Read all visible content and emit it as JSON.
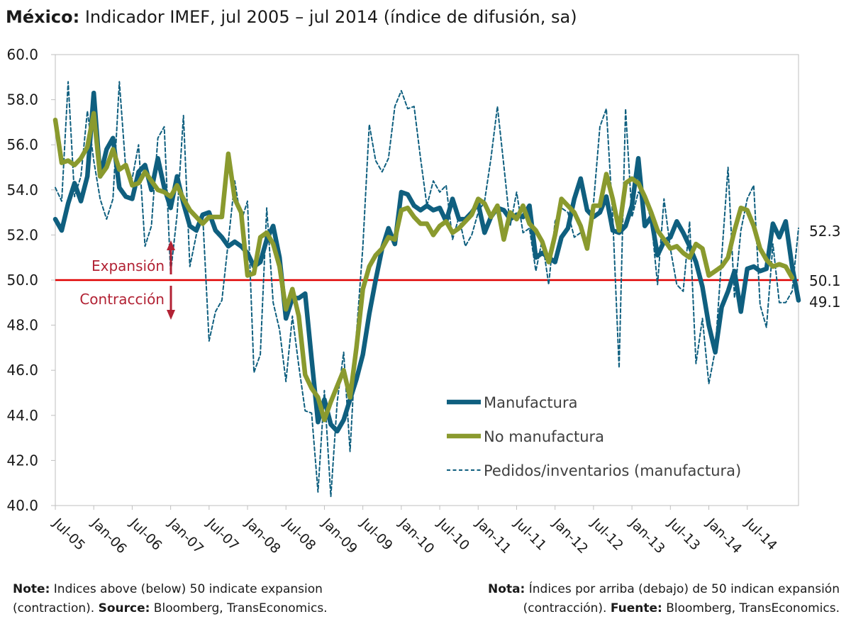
{
  "header": {
    "title_bold": "México:",
    "title_rest": " Indicador IMEF, jul 2005 – jul 2014 (índice de difusión, sa)"
  },
  "notes": {
    "left_label": "Note:",
    "left_text1": " Indices above (below) 50 indicate expansion",
    "left_text2": "(contraction). ",
    "left_source_label": "Source:",
    "left_source": " Bloomberg, TransEconomics.",
    "right_label": "Nota:",
    "right_text1": " Índices por arriba (debajo) de 50 indican expansión",
    "right_text2": "(contracción). ",
    "right_source_label": "Fuente:",
    "right_source": " Bloomberg, TransEconomics."
  },
  "chart_data": {
    "type": "line",
    "title": "México: Indicador IMEF, jul 2005 – jul 2014 (índice de difusión, sa)",
    "ylim": [
      40.0,
      60.0
    ],
    "y_ticks": [
      "40.0",
      "42.0",
      "44.0",
      "46.0",
      "48.0",
      "50.0",
      "52.0",
      "54.0",
      "56.0",
      "58.0",
      "60.0"
    ],
    "x_ticks": [
      "Jul-05",
      "Jan-06",
      "Jul-06",
      "Jan-07",
      "Jul-07",
      "Jan-08",
      "Jul-08",
      "Jan-09",
      "Jul-09",
      "Jan-10",
      "Jul-10",
      "Jan-11",
      "Jul-11",
      "Jan-12",
      "Jul-12",
      "Jan-13",
      "Jul-13",
      "Jan-14",
      "Jul-14"
    ],
    "threshold": 50.0,
    "annotations": {
      "expansion": "Expansión",
      "contraction": "Contracción"
    },
    "end_labels": [
      "52.3",
      "50.1",
      "49.1"
    ],
    "legend_position": "bottom-right",
    "colors": {
      "manufactura": "#0f5f7f",
      "no_manufactura": "#8a9a2e",
      "pedidos": "#0f5f7f",
      "threshold": "#e00000",
      "arrow": "#b22234"
    },
    "series": [
      {
        "name": "Manufactura",
        "style": "thick-solid",
        "values": [
          52.7,
          52.2,
          53.4,
          54.3,
          53.5,
          54.6,
          58.3,
          54.6,
          55.8,
          56.3,
          54.1,
          53.7,
          53.6,
          54.8,
          55.1,
          54.0,
          55.4,
          54.1,
          53.2,
          54.6,
          53.4,
          52.4,
          52.2,
          52.9,
          53.0,
          52.2,
          51.9,
          51.5,
          51.7,
          51.5,
          51.2,
          50.6,
          50.8,
          51.8,
          52.4,
          51.0,
          48.3,
          49.2,
          49.2,
          49.4,
          46.5,
          43.7,
          44.7,
          43.6,
          43.3,
          43.8,
          44.7,
          45.6,
          46.7,
          48.5,
          50.0,
          51.4,
          52.3,
          51.6,
          53.9,
          53.8,
          53.3,
          53.1,
          53.3,
          53.1,
          53.2,
          52.6,
          53.6,
          52.7,
          52.7,
          53.0,
          53.4,
          52.1,
          52.8,
          53.2,
          53.1,
          52.7,
          52.9,
          52.8,
          53.3,
          51.0,
          51.2,
          51.0,
          50.8,
          51.9,
          52.3,
          53.6,
          54.5,
          53.1,
          52.8,
          53.0,
          53.7,
          52.2,
          52.1,
          52.4,
          53.3,
          55.4,
          52.4,
          52.8,
          51.1,
          51.7,
          51.9,
          52.6,
          52.1,
          51.5,
          50.8,
          49.7,
          48.0,
          46.8,
          48.8,
          49.5,
          50.4,
          48.6,
          50.5,
          50.6,
          50.4,
          50.5,
          52.5,
          51.9,
          52.6,
          50.6,
          49.1
        ]
      },
      {
        "name": "No manufactura",
        "style": "thick-solid",
        "values": [
          57.1,
          55.2,
          55.3,
          55.1,
          55.4,
          55.9,
          57.4,
          54.6,
          55.0,
          55.8,
          54.9,
          55.1,
          54.2,
          54.3,
          54.8,
          54.4,
          54.0,
          53.9,
          53.7,
          54.2,
          53.6,
          53.1,
          52.8,
          52.5,
          52.8,
          52.8,
          52.8,
          55.6,
          53.6,
          53.0,
          50.2,
          50.3,
          51.9,
          52.1,
          51.6,
          50.6,
          48.7,
          49.6,
          48.4,
          45.8,
          45.2,
          44.8,
          43.8,
          44.6,
          45.3,
          46.0,
          44.8,
          47.0,
          49.6,
          50.6,
          51.1,
          51.4,
          51.9,
          51.8,
          53.1,
          53.2,
          52.8,
          52.5,
          52.5,
          52.0,
          52.4,
          52.6,
          52.1,
          52.3,
          52.6,
          52.9,
          53.6,
          53.4,
          52.8,
          53.3,
          51.8,
          53.0,
          52.7,
          53.3,
          52.5,
          52.2,
          51.7,
          50.8,
          52.0,
          53.6,
          53.3,
          53.0,
          52.4,
          51.4,
          53.3,
          53.3,
          54.7,
          53.6,
          52.2,
          54.3,
          54.5,
          54.3,
          53.7,
          53.0,
          52.2,
          51.8,
          51.4,
          51.5,
          51.2,
          51.0,
          51.6,
          51.4,
          50.2,
          50.4,
          50.6,
          51.0,
          52.2,
          53.2,
          53.1,
          52.4,
          51.4,
          50.9,
          50.6,
          50.7,
          50.6,
          50.1
        ]
      },
      {
        "name": "Pedidos/inventarios (manufactura)",
        "style": "thin-dashed",
        "values": [
          54.1,
          53.5,
          58.8,
          53.7,
          54.6,
          57.5,
          55.3,
          53.6,
          52.7,
          53.6,
          58.8,
          54.9,
          54.5,
          56.0,
          51.5,
          52.4,
          56.3,
          56.8,
          50.3,
          52.9,
          57.3,
          50.6,
          52.0,
          52.9,
          47.3,
          48.6,
          49.1,
          51.7,
          54.4,
          52.6,
          53.5,
          45.9,
          46.7,
          53.2,
          49.0,
          47.8,
          45.5,
          48.4,
          46.2,
          44.2,
          44.1,
          40.6,
          45.1,
          40.4,
          44.6,
          46.8,
          42.4,
          47.6,
          51.5,
          56.9,
          55.3,
          54.8,
          55.4,
          57.7,
          58.4,
          57.6,
          57.7,
          55.4,
          53.3,
          54.4,
          53.9,
          54.2,
          51.8,
          52.8,
          51.5,
          52.0,
          53.0,
          53.5,
          55.4,
          57.7,
          55.1,
          52.4,
          53.9,
          52.1,
          52.3,
          50.4,
          51.8,
          49.8,
          52.6,
          53.2,
          53.0,
          51.9,
          52.1,
          51.3,
          53.4,
          56.8,
          57.6,
          52.8,
          46.1,
          57.6,
          52.8,
          53.9,
          53.6,
          52.7,
          49.8,
          53.6,
          51.4,
          49.8,
          49.5,
          52.6,
          46.3,
          48.3,
          45.4,
          46.9,
          51.0,
          55.0,
          49.2,
          52.2,
          53.6,
          54.2,
          48.9,
          47.9,
          51.6,
          49.0,
          49.0,
          49.5,
          52.3
        ]
      }
    ]
  }
}
